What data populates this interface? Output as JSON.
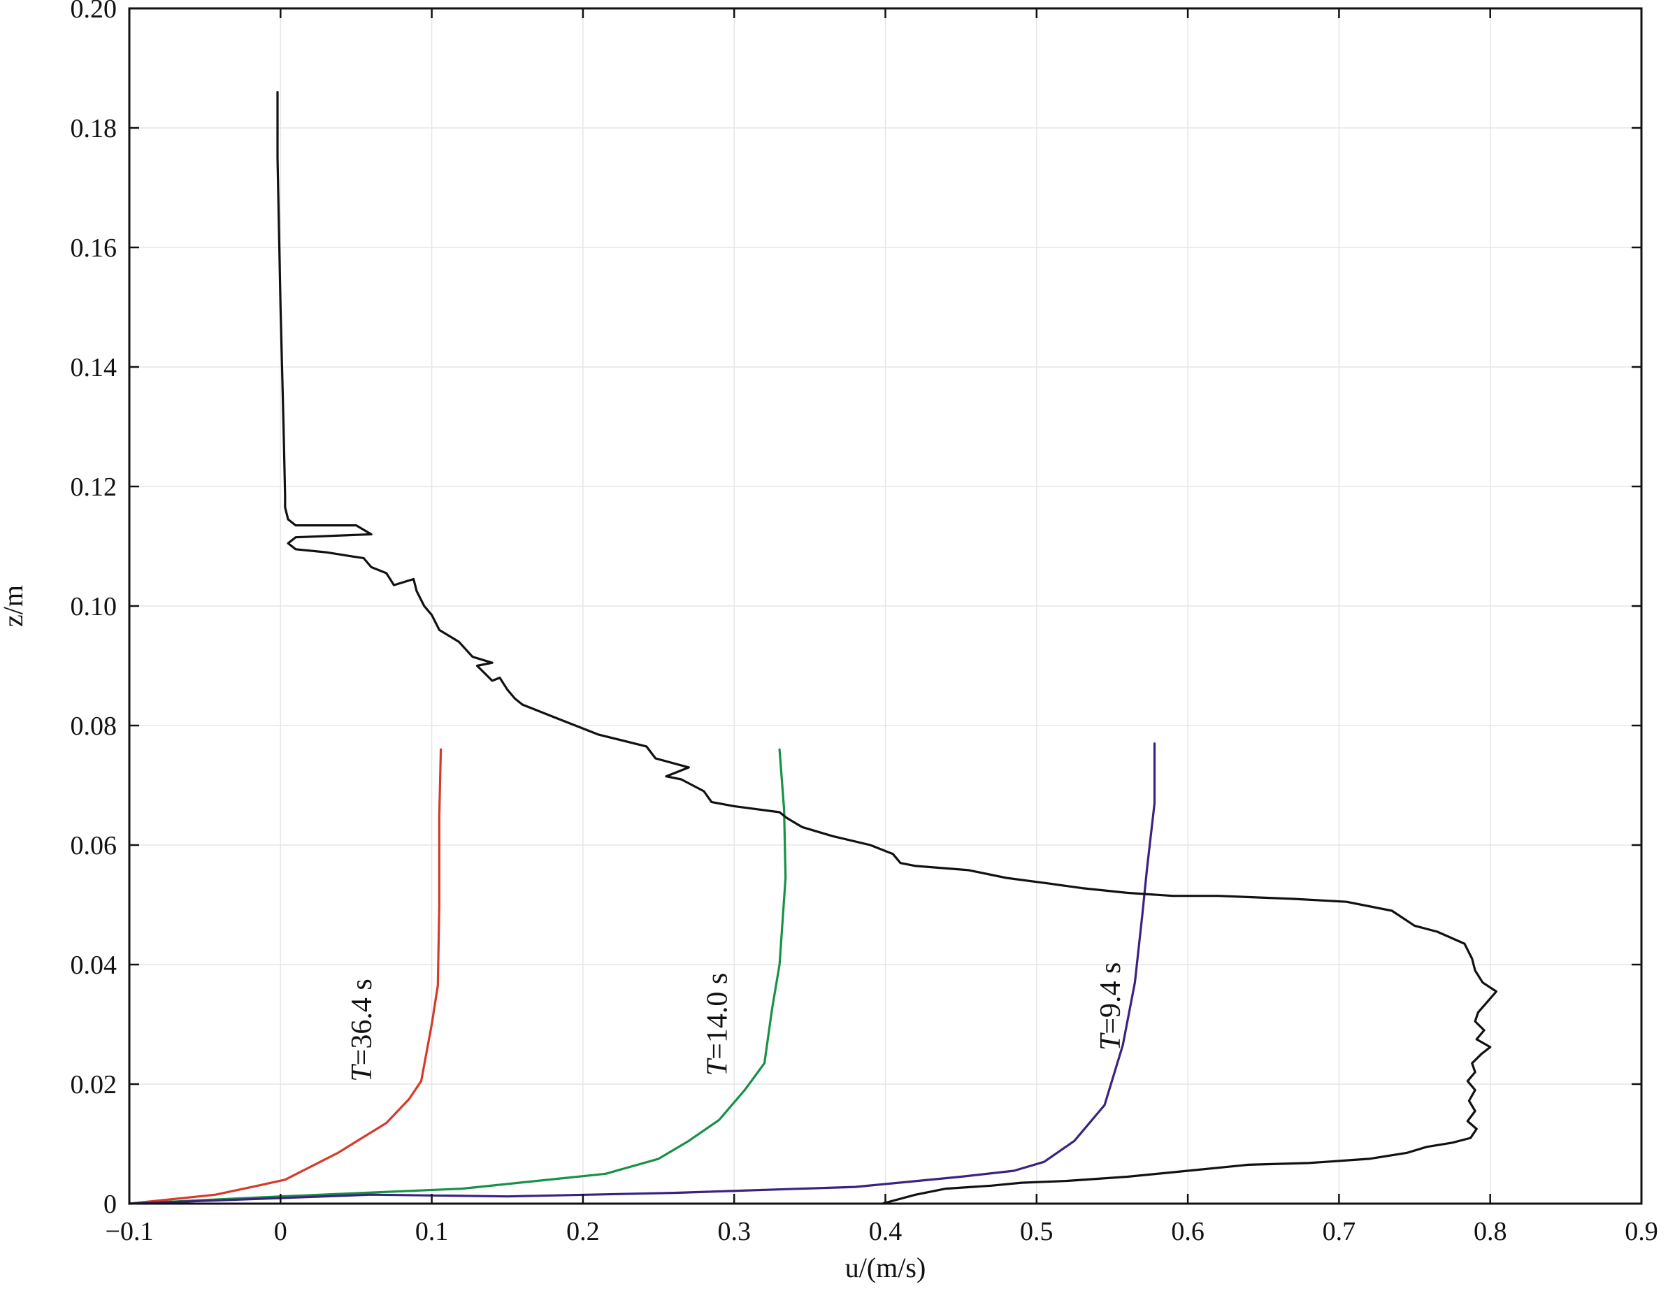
{
  "chart_data": {
    "type": "line",
    "title": "",
    "xlabel": "u/(m/s)",
    "ylabel": "z/m",
    "xlim": [
      -0.1,
      0.9
    ],
    "ylim": [
      0,
      0.2
    ],
    "x_ticks": [
      -0.1,
      0,
      0.1,
      0.2,
      0.3,
      0.4,
      0.5,
      0.6,
      0.7,
      0.8,
      0.9
    ],
    "x_tick_labels": [
      "−0.1",
      "0",
      "0.1",
      "0.2",
      "0.3",
      "0.4",
      "0.5",
      "0.6",
      "0.7",
      "0.8",
      "0.9"
    ],
    "y_ticks": [
      0,
      0.02,
      0.04,
      0.06,
      0.08,
      0.1,
      0.12,
      0.14,
      0.16,
      0.18,
      0.2
    ],
    "y_tick_labels": [
      "0",
      "0.02",
      "0.04",
      "0.06",
      "0.08",
      "0.10",
      "0.12",
      "0.14",
      "0.16",
      "0.18",
      "0.20"
    ],
    "grid": true,
    "legend": "none",
    "annotations": [
      {
        "italic": "T",
        "text": "=36.4 s",
        "x": 0.06,
        "y": 0.029
      },
      {
        "italic": "T",
        "text": "=14.0 s",
        "x": 0.295,
        "y": 0.03
      },
      {
        "italic": "T",
        "text": "=9.4 s",
        "x": 0.555,
        "y": 0.033
      }
    ],
    "series": [
      {
        "color": "#d53a2a",
        "points": [
          [
            -0.1,
            0
          ],
          [
            -0.043,
            0.0015
          ],
          [
            -0.015,
            0.003
          ],
          [
            0.003,
            0.004
          ],
          [
            0.038,
            0.0085
          ],
          [
            0.07,
            0.0135
          ],
          [
            0.085,
            0.0175
          ],
          [
            0.093,
            0.0205
          ],
          [
            0.1,
            0.03
          ],
          [
            0.104,
            0.0365
          ],
          [
            0.105,
            0.05
          ],
          [
            0.105,
            0.065
          ],
          [
            0.106,
            0.076
          ]
        ]
      },
      {
        "color": "#169146",
        "points": [
          [
            -0.1,
            0
          ],
          [
            0,
            0.0012
          ],
          [
            0.12,
            0.0025
          ],
          [
            0.215,
            0.005
          ],
          [
            0.25,
            0.0075
          ],
          [
            0.27,
            0.0105
          ],
          [
            0.29,
            0.014
          ],
          [
            0.307,
            0.019
          ],
          [
            0.32,
            0.0235
          ],
          [
            0.325,
            0.0325
          ],
          [
            0.33,
            0.04
          ],
          [
            0.334,
            0.0545
          ],
          [
            0.333,
            0.066
          ],
          [
            0.33,
            0.076
          ]
        ]
      },
      {
        "color": "#3b2280",
        "points": [
          [
            -0.1,
            0
          ],
          [
            0.06,
            0.0015
          ],
          [
            0.15,
            0.0012
          ],
          [
            0.26,
            0.0018
          ],
          [
            0.38,
            0.0028
          ],
          [
            0.45,
            0.0045
          ],
          [
            0.485,
            0.0055
          ],
          [
            0.505,
            0.007
          ],
          [
            0.525,
            0.0105
          ],
          [
            0.545,
            0.0165
          ],
          [
            0.557,
            0.0265
          ],
          [
            0.565,
            0.037
          ],
          [
            0.57,
            0.0485
          ],
          [
            0.573,
            0.056
          ],
          [
            0.578,
            0.067
          ],
          [
            0.578,
            0.077
          ]
        ]
      },
      {
        "color": "#111111",
        "points": [
          [
            0.398,
            0
          ],
          [
            0.42,
            0.0015
          ],
          [
            0.44,
            0.0025
          ],
          [
            0.47,
            0.003
          ],
          [
            0.49,
            0.0035
          ],
          [
            0.52,
            0.0038
          ],
          [
            0.56,
            0.0045
          ],
          [
            0.6,
            0.0055
          ],
          [
            0.64,
            0.0065
          ],
          [
            0.68,
            0.0068
          ],
          [
            0.72,
            0.0075
          ],
          [
            0.745,
            0.0085
          ],
          [
            0.758,
            0.0095
          ],
          [
            0.775,
            0.0102
          ],
          [
            0.787,
            0.011
          ],
          [
            0.791,
            0.0125
          ],
          [
            0.785,
            0.0138
          ],
          [
            0.79,
            0.0155
          ],
          [
            0.786,
            0.0172
          ],
          [
            0.79,
            0.019
          ],
          [
            0.785,
            0.0205
          ],
          [
            0.79,
            0.022
          ],
          [
            0.788,
            0.0235
          ],
          [
            0.794,
            0.025
          ],
          [
            0.8,
            0.0262
          ],
          [
            0.791,
            0.0275
          ],
          [
            0.796,
            0.029
          ],
          [
            0.79,
            0.0305
          ],
          [
            0.792,
            0.032
          ],
          [
            0.804,
            0.0355
          ],
          [
            0.795,
            0.037
          ],
          [
            0.79,
            0.039
          ],
          [
            0.788,
            0.041
          ],
          [
            0.783,
            0.0435
          ],
          [
            0.765,
            0.0455
          ],
          [
            0.75,
            0.0465
          ],
          [
            0.735,
            0.049
          ],
          [
            0.705,
            0.0505
          ],
          [
            0.67,
            0.051
          ],
          [
            0.62,
            0.0515
          ],
          [
            0.59,
            0.0515
          ],
          [
            0.56,
            0.052
          ],
          [
            0.53,
            0.0528
          ],
          [
            0.51,
            0.0535
          ],
          [
            0.48,
            0.0545
          ],
          [
            0.455,
            0.0558
          ],
          [
            0.42,
            0.0565
          ],
          [
            0.41,
            0.057
          ],
          [
            0.405,
            0.0585
          ],
          [
            0.39,
            0.06
          ],
          [
            0.365,
            0.0615
          ],
          [
            0.345,
            0.063
          ],
          [
            0.335,
            0.0645
          ],
          [
            0.33,
            0.0655
          ],
          [
            0.3,
            0.0665
          ],
          [
            0.285,
            0.0672
          ],
          [
            0.28,
            0.069
          ],
          [
            0.265,
            0.071
          ],
          [
            0.255,
            0.0715
          ],
          [
            0.27,
            0.073
          ],
          [
            0.248,
            0.0745
          ],
          [
            0.242,
            0.0765
          ],
          [
            0.21,
            0.0785
          ],
          [
            0.2,
            0.0795
          ],
          [
            0.18,
            0.0815
          ],
          [
            0.16,
            0.0835
          ],
          [
            0.155,
            0.0845
          ],
          [
            0.15,
            0.086
          ],
          [
            0.145,
            0.088
          ],
          [
            0.14,
            0.0875
          ],
          [
            0.13,
            0.09
          ],
          [
            0.14,
            0.0905
          ],
          [
            0.127,
            0.0915
          ],
          [
            0.118,
            0.094
          ],
          [
            0.105,
            0.096
          ],
          [
            0.1,
            0.0985
          ],
          [
            0.095,
            0.1
          ],
          [
            0.09,
            0.1025
          ],
          [
            0.088,
            0.1045
          ],
          [
            0.075,
            0.1035
          ],
          [
            0.07,
            0.1055
          ],
          [
            0.06,
            0.1065
          ],
          [
            0.055,
            0.108
          ],
          [
            0.03,
            0.109
          ],
          [
            0.01,
            0.1095
          ],
          [
            0.005,
            0.1105
          ],
          [
            0.01,
            0.1115
          ],
          [
            0.06,
            0.112
          ],
          [
            0.05,
            0.1135
          ],
          [
            0.01,
            0.1135
          ],
          [
            0.005,
            0.1145
          ],
          [
            0.003,
            0.1165
          ],
          [
            0.003,
            0.1185
          ],
          [
            0.002,
            0.13
          ],
          [
            0.0,
            0.15
          ],
          [
            -0.002,
            0.175
          ],
          [
            -0.002,
            0.186
          ]
        ]
      }
    ]
  }
}
